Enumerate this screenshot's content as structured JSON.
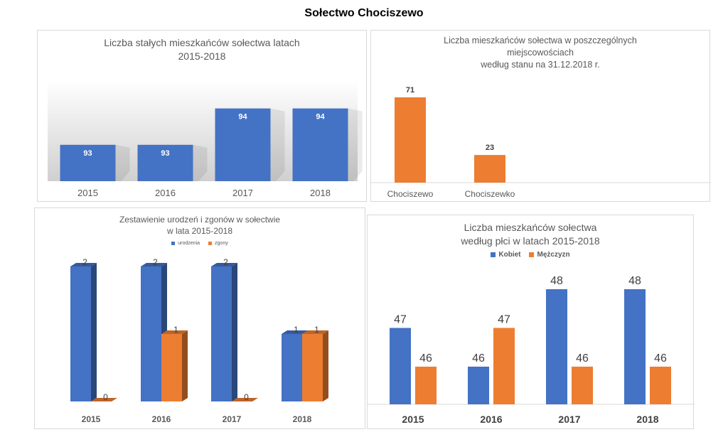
{
  "title": "Sołectwo Chociszewo",
  "colors": {
    "blue": "#4472c4",
    "orange": "#ed7d31",
    "text": "#595959"
  },
  "chart_data": [
    {
      "id": "residents",
      "type": "bar",
      "title": "Liczba stałych mieszkańców sołectwa latach\n2015-2018",
      "categories": [
        "2015",
        "2016",
        "2017",
        "2018"
      ],
      "series": [
        {
          "values": [
            93,
            93,
            94,
            94
          ]
        }
      ],
      "data_labels": [
        "93",
        "93",
        "94",
        "94"
      ],
      "ylim": [
        92,
        94.5
      ],
      "grid": false
    },
    {
      "id": "villages",
      "type": "bar",
      "title": "Liczba mieszkańców sołectwa w poszczególnych\nmiejscowościach\n według stanu na 31.12.2018 r.",
      "categories": [
        "Chociszewo",
        "Chociszewko"
      ],
      "series": [
        {
          "values": [
            71,
            23
          ]
        }
      ],
      "data_labels": [
        "71",
        "23"
      ],
      "ylim": [
        0,
        80
      ],
      "grid": false
    },
    {
      "id": "births_deaths",
      "type": "bar",
      "title": "Zestawienie urodzeń i zgonów w sołectwie\nw lata 2015-2018",
      "categories": [
        "2015",
        "2016",
        "2017",
        "2018"
      ],
      "series": [
        {
          "name": "urodzenia",
          "values": [
            2,
            2,
            2,
            1
          ]
        },
        {
          "name": "zgony",
          "values": [
            0,
            1,
            0,
            1
          ]
        }
      ],
      "data_labels": [
        [
          "2",
          "2",
          "2",
          "1"
        ],
        [
          "0",
          "1",
          "0",
          "1"
        ]
      ],
      "legend": "top",
      "ylim": [
        0,
        2
      ],
      "grid": false
    },
    {
      "id": "gender",
      "type": "bar",
      "title": "Liczba mieszkańców sołectwa\nwedług płci w latach 2015-2018",
      "categories": [
        "2015",
        "2016",
        "2017",
        "2018"
      ],
      "series": [
        {
          "name": "Kobiet",
          "values": [
            47,
            46,
            48,
            48
          ]
        },
        {
          "name": "Mężczyzn",
          "values": [
            46,
            47,
            46,
            46
          ]
        }
      ],
      "data_labels": [
        [
          "47",
          "46",
          "48",
          "48"
        ],
        [
          "46",
          "47",
          "46",
          "46"
        ]
      ],
      "legend": "top",
      "ylim": [
        45,
        48
      ],
      "grid": false
    }
  ]
}
